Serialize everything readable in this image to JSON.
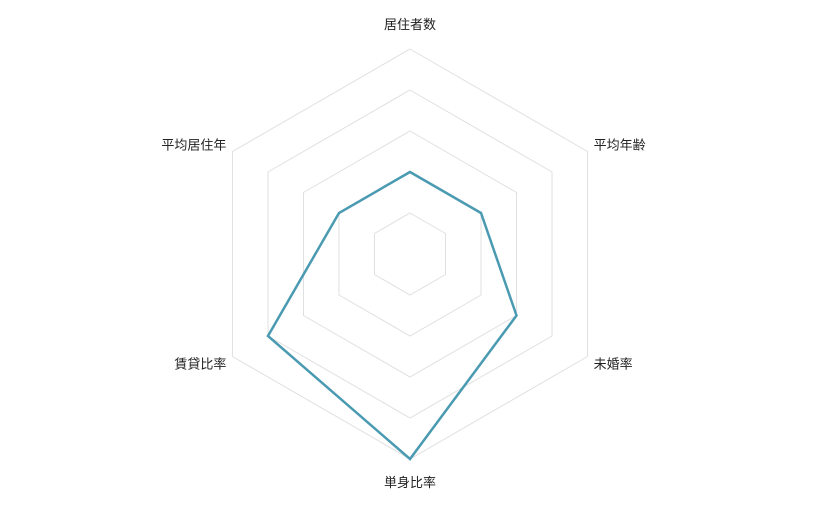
{
  "chart_data": {
    "type": "radar",
    "title": "",
    "axes": [
      "居住者数",
      "平均年齢",
      "未婚率",
      "単身比率",
      "賃貸比率",
      "平均居住年"
    ],
    "values": [
      2,
      2,
      3,
      5,
      4,
      2
    ],
    "range": [
      0,
      5
    ],
    "grid_levels": 5,
    "grid": true,
    "legend": "none",
    "colors": {
      "series": "#4a9ab2",
      "grid": "#e0e0e0"
    }
  }
}
